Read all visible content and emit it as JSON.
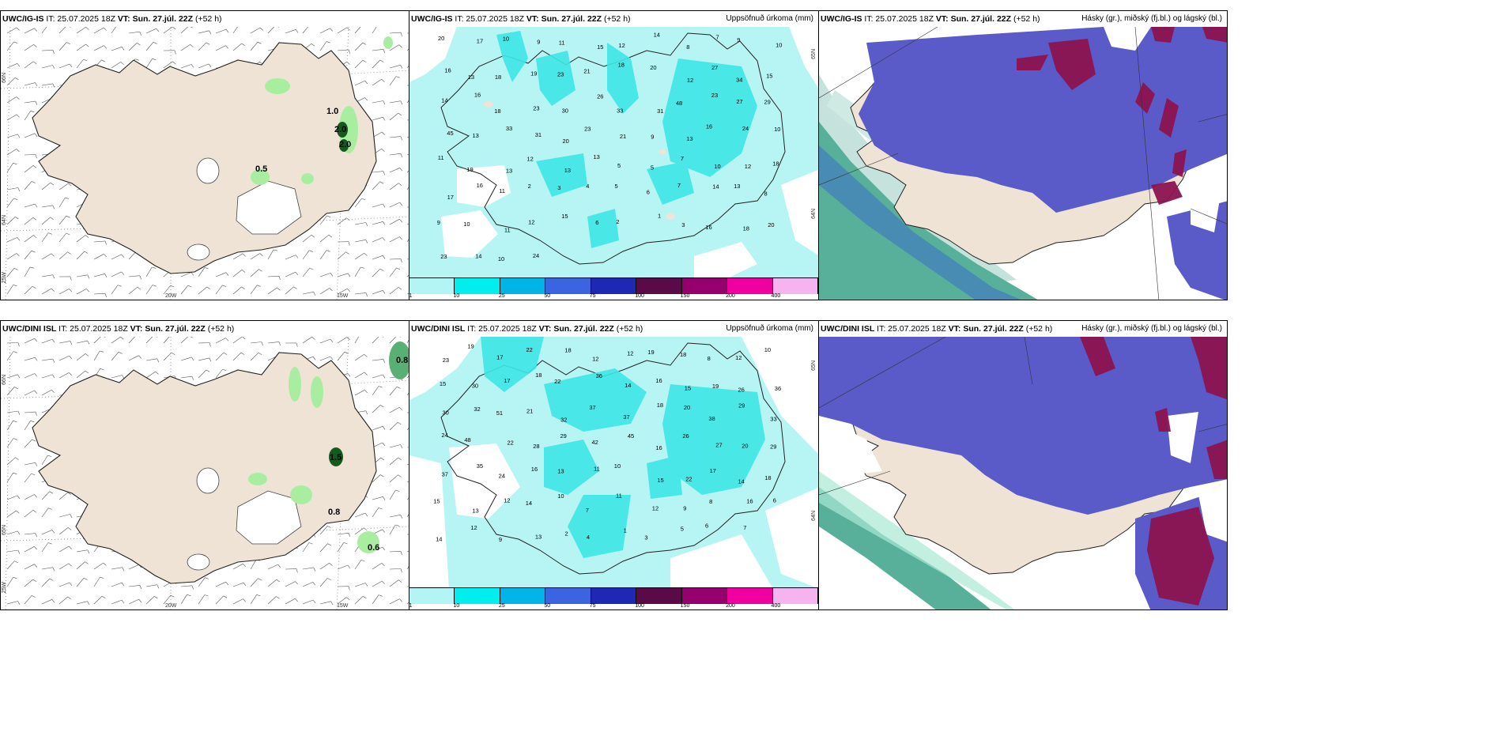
{
  "panels": {
    "tl": {
      "model": "UWC/IG-IS",
      "it": "IT: 25.07.2025 18Z",
      "vt_label": "VT:",
      "vt": "Sun. 27.júl. 22Z",
      "lead": "(+52 h)",
      "right": ""
    },
    "tm": {
      "model": "UWC/IG-IS",
      "it": "IT: 25.07.2025 18Z",
      "vt_label": "VT:",
      "vt": "Sun. 27.júl. 22Z",
      "lead": "(+52 h)",
      "right": "Uppsöfnuð úrkoma (mm)"
    },
    "tr": {
      "model": "UWC/IG-IS",
      "it": "IT: 25.07.2025 18Z",
      "vt_label": "VT:",
      "vt": "Sun. 27.júl. 22Z",
      "lead": "(+52 h)",
      "right": "Hásky (gr.), miðský (fj.bl.) og lágský (bl.)"
    },
    "bl": {
      "model": "UWC/DINI ISL",
      "it": "IT: 25.07.2025 18Z",
      "vt_label": "VT:",
      "vt": "Sun. 27.júl. 22Z",
      "lead": "(+52 h)",
      "right": ""
    },
    "bm": {
      "model": "UWC/DINI ISL",
      "it": "IT: 25.07.2025 18Z",
      "vt_label": "VT:",
      "vt": "Sun. 27.júl. 22Z",
      "lead": "(+52 h)",
      "right": "Uppsöfnuð úrkoma (mm)"
    },
    "br": {
      "model": "UWC/DINI ISL",
      "it": "IT: 25.07.2025 18Z",
      "vt_label": "VT:",
      "vt": "Sun. 27.júl. 22Z",
      "lead": "(+52 h)",
      "right": "Hásky (gr.), miðský (fj.bl.) og lágský (bl.)"
    }
  },
  "axes": {
    "lat66": "66N",
    "lat65": "65N",
    "lat64": "64N",
    "lon25": "25W",
    "lon20": "20W",
    "lon15": "15W"
  },
  "legend": {
    "ticks": [
      "1",
      "10",
      "25",
      "50",
      "75",
      "100",
      "150",
      "200",
      "400"
    ],
    "colors": [
      "#b3f5f5",
      "#00eeee",
      "#00b4e6",
      "#3a64e0",
      "#1e28b4",
      "#5a0a46",
      "#96006e",
      "#f000a0",
      "#f5b4f0"
    ]
  },
  "colors": {
    "land": "#efe3d6",
    "sea_precip": "#b7f4f4",
    "precip_mid": "#3ee6e6",
    "cloud_mid": "#5a5ac8",
    "cloud_high": "#8c1450",
    "cloud_low": "#58b09a",
    "green_light": "#a9eea0",
    "green_dark": "#145a1e"
  },
  "tl_values": [
    "1.0",
    "2.0",
    "2.0",
    "0.5"
  ],
  "bl_values": [
    "0.8",
    "1.5",
    "0.8",
    "0.6"
  ],
  "tm_values": [
    "20",
    "17",
    "10",
    "9",
    "11",
    "15",
    "12",
    "14",
    "8",
    "7",
    "9",
    "10",
    "16",
    "13",
    "18",
    "19",
    "23",
    "21",
    "18",
    "20",
    "12",
    "27",
    "34",
    "15",
    "14",
    "16",
    "18",
    "23",
    "30",
    "26",
    "33",
    "31",
    "48",
    "23",
    "27",
    "29",
    "45",
    "13",
    "33",
    "31",
    "20",
    "23",
    "21",
    "9",
    "13",
    "16",
    "24",
    "10",
    "11",
    "19",
    "13",
    "12",
    "13",
    "13",
    "5",
    "5",
    "7",
    "10",
    "12",
    "18",
    "17",
    "16",
    "11",
    "2",
    "3",
    "4",
    "5",
    "6",
    "7",
    "14",
    "13",
    "8",
    "9",
    "10",
    "11",
    "12",
    "15",
    "6",
    "2",
    "1",
    "3",
    "16",
    "18",
    "20",
    "23",
    "14",
    "10",
    "24"
  ],
  "bm_values": [
    "23",
    "19",
    "17",
    "22",
    "18",
    "12",
    "12",
    "19",
    "18",
    "8",
    "12",
    "10",
    "15",
    "30",
    "17",
    "18",
    "22",
    "36",
    "14",
    "16",
    "15",
    "19",
    "26",
    "36",
    "30",
    "32",
    "51",
    "21",
    "32",
    "37",
    "37",
    "18",
    "20",
    "38",
    "29",
    "33",
    "24",
    "48",
    "22",
    "28",
    "29",
    "42",
    "45",
    "16",
    "26",
    "27",
    "20",
    "29",
    "37",
    "35",
    "24",
    "16",
    "13",
    "11",
    "10",
    "15",
    "22",
    "17",
    "14",
    "18",
    "15",
    "13",
    "12",
    "14",
    "10",
    "7",
    "11",
    "12",
    "9",
    "8",
    "16",
    "6",
    "14",
    "12",
    "9",
    "13",
    "2",
    "4",
    "1",
    "3",
    "5",
    "6",
    "7"
  ]
}
